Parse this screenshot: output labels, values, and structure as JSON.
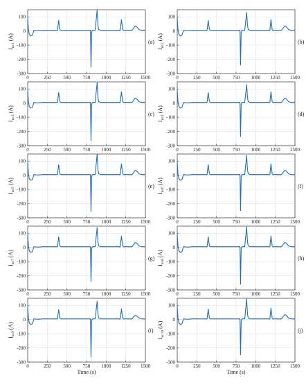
{
  "chart_data": {
    "type": "line",
    "series_color": "#1f6fb5",
    "x_unit_label": "Time (s)",
    "x_ticks": [
      0,
      250,
      500,
      750,
      1000,
      1250,
      1500
    ],
    "y_ticks": [
      -300,
      -200,
      -100,
      0,
      100
    ],
    "xlim": [
      0,
      1500
    ],
    "ylim": [
      -300,
      150
    ],
    "grid": true,
    "panels": [
      {
        "tag": "(a)",
        "ylabel": "I",
        "ylabel_sub": "uc1",
        "ylabel_unit": " (A)",
        "x": [
          0,
          3,
          10,
          20,
          40,
          60,
          80,
          120,
          200,
          300,
          380,
          395,
          410,
          420,
          440,
          790,
          800,
          807,
          815,
          822,
          860,
          885,
          895,
          905,
          930,
          1180,
          1195,
          1210,
          1220,
          1240,
          1330,
          1350,
          1370,
          1390,
          1420,
          1450,
          1500
        ],
        "y": [
          100,
          60,
          10,
          -25,
          -35,
          -30,
          5,
          2,
          5,
          5,
          5,
          75,
          10,
          5,
          5,
          5,
          5,
          -255,
          -10,
          5,
          5,
          150,
          40,
          10,
          5,
          5,
          80,
          10,
          5,
          5,
          5,
          20,
          35,
          30,
          10,
          5,
          5
        ]
      },
      {
        "tag": "(b)",
        "ylabel": "I",
        "ylabel_sub": "uc2",
        "ylabel_unit": " (A)",
        "x": [
          0,
          3,
          10,
          20,
          40,
          60,
          80,
          120,
          200,
          300,
          380,
          395,
          410,
          420,
          440,
          790,
          800,
          807,
          815,
          822,
          860,
          885,
          895,
          905,
          930,
          1180,
          1195,
          1210,
          1220,
          1240,
          1330,
          1350,
          1370,
          1390,
          1420,
          1450,
          1500
        ],
        "y": [
          100,
          60,
          10,
          -25,
          -35,
          -30,
          5,
          2,
          5,
          5,
          5,
          75,
          10,
          5,
          5,
          5,
          5,
          -240,
          -10,
          5,
          5,
          130,
          40,
          10,
          5,
          5,
          80,
          10,
          5,
          5,
          5,
          20,
          35,
          30,
          10,
          5,
          5
        ]
      },
      {
        "tag": "(c)",
        "ylabel": "I",
        "ylabel_sub": "uc3",
        "ylabel_unit": " (A)",
        "x": [
          0,
          3,
          10,
          20,
          40,
          60,
          80,
          120,
          200,
          300,
          380,
          395,
          410,
          420,
          440,
          790,
          800,
          807,
          815,
          822,
          860,
          885,
          895,
          905,
          930,
          1180,
          1195,
          1210,
          1220,
          1240,
          1330,
          1350,
          1370,
          1390,
          1420,
          1450,
          1500
        ],
        "y": [
          100,
          60,
          10,
          -25,
          -35,
          -30,
          5,
          2,
          5,
          5,
          5,
          75,
          10,
          5,
          5,
          5,
          5,
          -265,
          -10,
          5,
          5,
          145,
          40,
          10,
          5,
          5,
          80,
          10,
          5,
          5,
          5,
          20,
          35,
          30,
          10,
          5,
          5
        ]
      },
      {
        "tag": "(d)",
        "ylabel": "I",
        "ylabel_sub": "uc4",
        "ylabel_unit": " (A)",
        "x": [
          0,
          3,
          10,
          20,
          40,
          60,
          80,
          120,
          200,
          300,
          380,
          395,
          410,
          420,
          440,
          790,
          800,
          807,
          815,
          822,
          860,
          885,
          895,
          905,
          930,
          1180,
          1195,
          1210,
          1220,
          1240,
          1330,
          1350,
          1370,
          1390,
          1420,
          1450,
          1500
        ],
        "y": [
          100,
          60,
          10,
          -25,
          -35,
          -30,
          5,
          2,
          5,
          5,
          5,
          75,
          10,
          5,
          5,
          5,
          5,
          -235,
          -10,
          5,
          5,
          130,
          40,
          10,
          5,
          5,
          80,
          10,
          5,
          5,
          5,
          20,
          35,
          30,
          10,
          5,
          5
        ]
      },
      {
        "tag": "(e)",
        "ylabel": "I",
        "ylabel_sub": "uc5",
        "ylabel_unit": " (A)",
        "x": [
          0,
          3,
          10,
          20,
          40,
          60,
          80,
          120,
          200,
          300,
          380,
          395,
          410,
          420,
          440,
          790,
          800,
          807,
          815,
          822,
          860,
          885,
          895,
          905,
          930,
          1180,
          1195,
          1210,
          1220,
          1240,
          1330,
          1350,
          1370,
          1390,
          1420,
          1450,
          1500
        ],
        "y": [
          100,
          60,
          10,
          -25,
          -35,
          -30,
          5,
          2,
          5,
          5,
          5,
          75,
          10,
          5,
          5,
          5,
          5,
          -255,
          -10,
          5,
          5,
          150,
          40,
          10,
          5,
          5,
          80,
          10,
          5,
          5,
          5,
          20,
          35,
          30,
          10,
          5,
          5
        ]
      },
      {
        "tag": "(f)",
        "ylabel": "I",
        "ylabel_sub": "uc6",
        "ylabel_unit": " (A)",
        "x": [
          0,
          3,
          10,
          20,
          40,
          60,
          80,
          120,
          200,
          300,
          380,
          395,
          410,
          420,
          440,
          790,
          800,
          807,
          815,
          822,
          860,
          885,
          895,
          905,
          930,
          1180,
          1195,
          1210,
          1220,
          1240,
          1330,
          1350,
          1370,
          1390,
          1420,
          1450,
          1500
        ],
        "y": [
          100,
          60,
          10,
          -25,
          -35,
          -30,
          5,
          2,
          5,
          5,
          5,
          75,
          10,
          5,
          5,
          5,
          5,
          -250,
          -10,
          5,
          5,
          140,
          40,
          10,
          5,
          5,
          80,
          10,
          5,
          5,
          5,
          20,
          35,
          30,
          10,
          5,
          5
        ]
      },
      {
        "tag": "(g)",
        "ylabel": "I",
        "ylabel_sub": "uc7",
        "ylabel_unit": " (A)",
        "x": [
          0,
          3,
          10,
          20,
          40,
          60,
          80,
          120,
          200,
          300,
          380,
          395,
          410,
          420,
          440,
          790,
          800,
          807,
          815,
          822,
          860,
          885,
          895,
          905,
          930,
          1180,
          1195,
          1210,
          1220,
          1240,
          1330,
          1350,
          1370,
          1390,
          1420,
          1450,
          1500
        ],
        "y": [
          100,
          60,
          10,
          -25,
          -35,
          -30,
          5,
          2,
          5,
          5,
          5,
          75,
          10,
          5,
          5,
          5,
          5,
          -240,
          -10,
          5,
          5,
          140,
          40,
          10,
          5,
          5,
          80,
          10,
          5,
          5,
          5,
          20,
          35,
          30,
          10,
          5,
          5
        ]
      },
      {
        "tag": "(h)",
        "ylabel": "I",
        "ylabel_sub": "uc8",
        "ylabel_unit": " (A)",
        "x": [
          0,
          3,
          10,
          20,
          40,
          60,
          80,
          120,
          200,
          300,
          380,
          395,
          410,
          420,
          440,
          790,
          800,
          807,
          815,
          822,
          860,
          885,
          895,
          905,
          930,
          1180,
          1195,
          1210,
          1220,
          1240,
          1330,
          1350,
          1370,
          1390,
          1420,
          1450,
          1500
        ],
        "y": [
          100,
          60,
          10,
          -25,
          -35,
          -30,
          5,
          2,
          5,
          5,
          5,
          75,
          10,
          5,
          5,
          5,
          5,
          -260,
          -10,
          5,
          5,
          145,
          40,
          10,
          5,
          5,
          80,
          10,
          5,
          5,
          5,
          20,
          35,
          30,
          10,
          5,
          5
        ]
      },
      {
        "tag": "(i)",
        "ylabel": "I",
        "ylabel_sub": "uc9",
        "ylabel_unit": " (A)",
        "x": [
          0,
          3,
          10,
          20,
          40,
          60,
          80,
          120,
          200,
          300,
          380,
          395,
          410,
          420,
          440,
          790,
          800,
          807,
          815,
          822,
          860,
          885,
          895,
          905,
          930,
          1180,
          1195,
          1210,
          1220,
          1240,
          1330,
          1350,
          1370,
          1390,
          1420,
          1450,
          1500
        ],
        "y": [
          100,
          60,
          10,
          -25,
          -35,
          -30,
          5,
          2,
          5,
          5,
          5,
          70,
          10,
          5,
          5,
          5,
          5,
          -265,
          -10,
          5,
          5,
          130,
          40,
          10,
          5,
          5,
          75,
          10,
          5,
          5,
          5,
          20,
          30,
          25,
          10,
          5,
          5
        ]
      },
      {
        "tag": "(j)",
        "ylabel": "I",
        "ylabel_sub": "uc10",
        "ylabel_unit": " (A)",
        "x": [
          0,
          3,
          10,
          20,
          40,
          60,
          80,
          120,
          200,
          300,
          380,
          395,
          410,
          420,
          440,
          790,
          800,
          807,
          815,
          822,
          860,
          885,
          895,
          905,
          930,
          1180,
          1195,
          1210,
          1220,
          1240,
          1330,
          1350,
          1370,
          1390,
          1420,
          1450,
          1500
        ],
        "y": [
          100,
          60,
          10,
          -25,
          -35,
          -30,
          5,
          2,
          5,
          5,
          5,
          75,
          10,
          5,
          5,
          5,
          5,
          -250,
          -10,
          5,
          5,
          145,
          40,
          10,
          5,
          5,
          80,
          10,
          5,
          5,
          5,
          20,
          35,
          30,
          10,
          5,
          5
        ]
      }
    ]
  }
}
